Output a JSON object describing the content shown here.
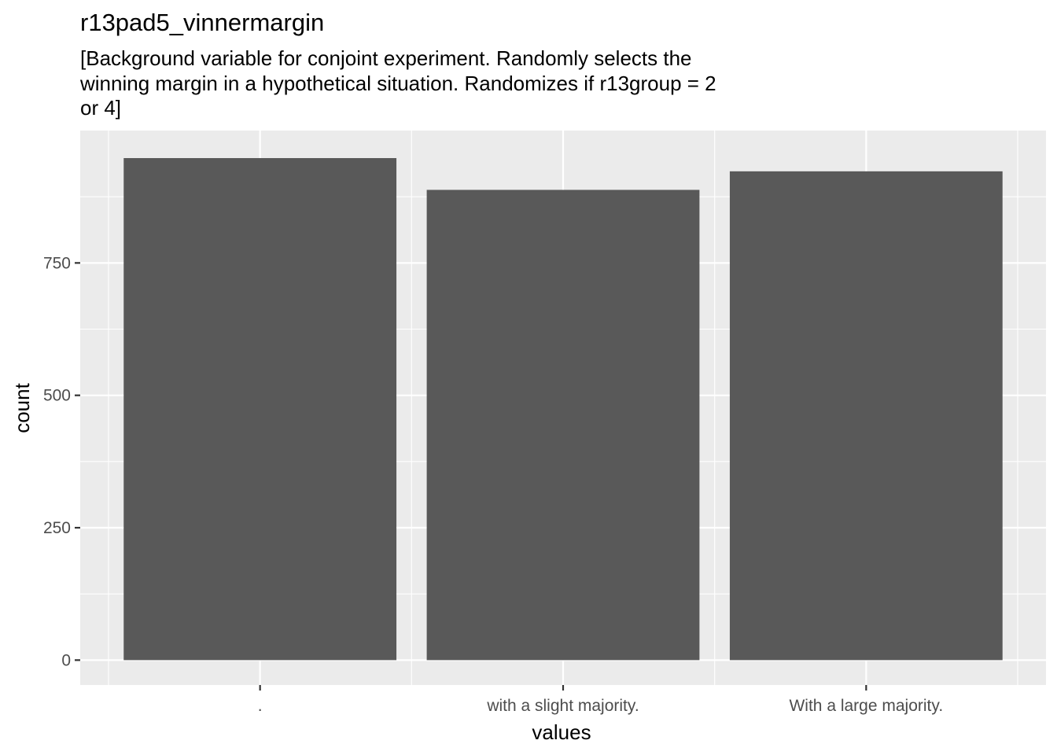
{
  "title": "r13pad5_vinnermargin",
  "subtitle_lines": [
    "[Background variable for conjoint experiment. Randomly selects the",
    "winning margin in a hypothetical situation. Randomizes if r13group = 2",
    "or 4]"
  ],
  "colors": {
    "panel_background": "#ebebeb",
    "grid": "#ffffff",
    "bar_fill": "#595959",
    "tick_text": "#4d4d4d"
  },
  "chart_data": {
    "type": "bar",
    "title": "r13pad5_vinnermargin",
    "xlabel": "values",
    "ylabel": "count",
    "categories": [
      ".",
      "with a slight majority.",
      "With a large majority."
    ],
    "values": [
      948,
      888,
      923
    ],
    "yticks": [
      0,
      250,
      500,
      750
    ],
    "ylim": [
      -47,
      1000
    ],
    "grid": true
  }
}
